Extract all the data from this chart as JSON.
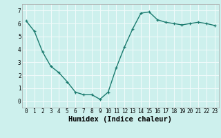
{
  "x": [
    0,
    1,
    2,
    3,
    4,
    5,
    6,
    7,
    8,
    9,
    10,
    11,
    12,
    13,
    14,
    15,
    16,
    17,
    18,
    19,
    20,
    21,
    22,
    23
  ],
  "y": [
    6.2,
    5.4,
    3.8,
    2.7,
    2.2,
    1.5,
    0.7,
    0.5,
    0.5,
    0.15,
    0.7,
    2.6,
    4.2,
    5.6,
    6.8,
    6.9,
    6.3,
    6.1,
    6.0,
    5.9,
    6.0,
    6.1,
    6.0,
    5.85
  ],
  "xlabel": "Humidex (Indice chaleur)",
  "xlim": [
    -0.5,
    23.5
  ],
  "ylim": [
    -0.5,
    7.5
  ],
  "yticks": [
    0,
    1,
    2,
    3,
    4,
    5,
    6,
    7
  ],
  "xticks": [
    0,
    1,
    2,
    3,
    4,
    5,
    6,
    7,
    8,
    9,
    10,
    11,
    12,
    13,
    14,
    15,
    16,
    17,
    18,
    19,
    20,
    21,
    22,
    23
  ],
  "line_color": "#1a7a6e",
  "marker_color": "#1a7a6e",
  "bg_color": "#cdf0ed",
  "grid_color": "#f0fafa",
  "tick_label_fontsize": 5.5,
  "xlabel_fontsize": 7.5,
  "line_width": 1.0,
  "marker_size": 3.5
}
